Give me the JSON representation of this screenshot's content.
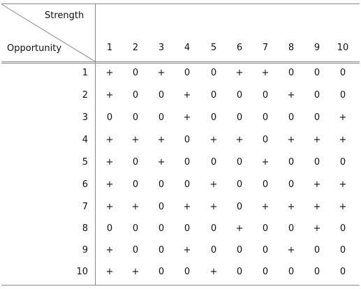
{
  "header": {
    "column_axis_label": "Strength",
    "row_axis_label": "Opportunity"
  },
  "columns": [
    "1",
    "2",
    "3",
    "4",
    "5",
    "6",
    "7",
    "8",
    "9",
    "10"
  ],
  "rows": [
    {
      "label": "1",
      "values": [
        "+",
        "0",
        "+",
        "0",
        "0",
        "+",
        "+",
        "0",
        "0",
        "0"
      ]
    },
    {
      "label": "2",
      "values": [
        "+",
        "0",
        "0",
        "+",
        "0",
        "0",
        "0",
        "+",
        "0",
        "0"
      ]
    },
    {
      "label": "3",
      "values": [
        "0",
        "0",
        "0",
        "+",
        "0",
        "0",
        "0",
        "0",
        "0",
        "+"
      ]
    },
    {
      "label": "4",
      "values": [
        "+",
        "+",
        "+",
        "0",
        "+",
        "+",
        "0",
        "+",
        "+",
        "+"
      ]
    },
    {
      "label": "5",
      "values": [
        "+",
        "0",
        "+",
        "0",
        "0",
        "0",
        "+",
        "0",
        "0",
        "0"
      ]
    },
    {
      "label": "6",
      "values": [
        "+",
        "0",
        "0",
        "0",
        "+",
        "0",
        "0",
        "0",
        "+",
        "+"
      ]
    },
    {
      "label": "7",
      "values": [
        "+",
        "+",
        "0",
        "+",
        "+",
        "0",
        "+",
        "+",
        "+",
        "+"
      ]
    },
    {
      "label": "8",
      "values": [
        "0",
        "0",
        "0",
        "0",
        "0",
        "+",
        "0",
        "0",
        "+",
        "0"
      ]
    },
    {
      "label": "9",
      "values": [
        "+",
        "0",
        "0",
        "+",
        "0",
        "0",
        "0",
        "+",
        "0",
        "0"
      ]
    },
    {
      "label": "10",
      "values": [
        "+",
        "+",
        "0",
        "0",
        "+",
        "0",
        "0",
        "0",
        "0",
        "0"
      ]
    }
  ]
}
